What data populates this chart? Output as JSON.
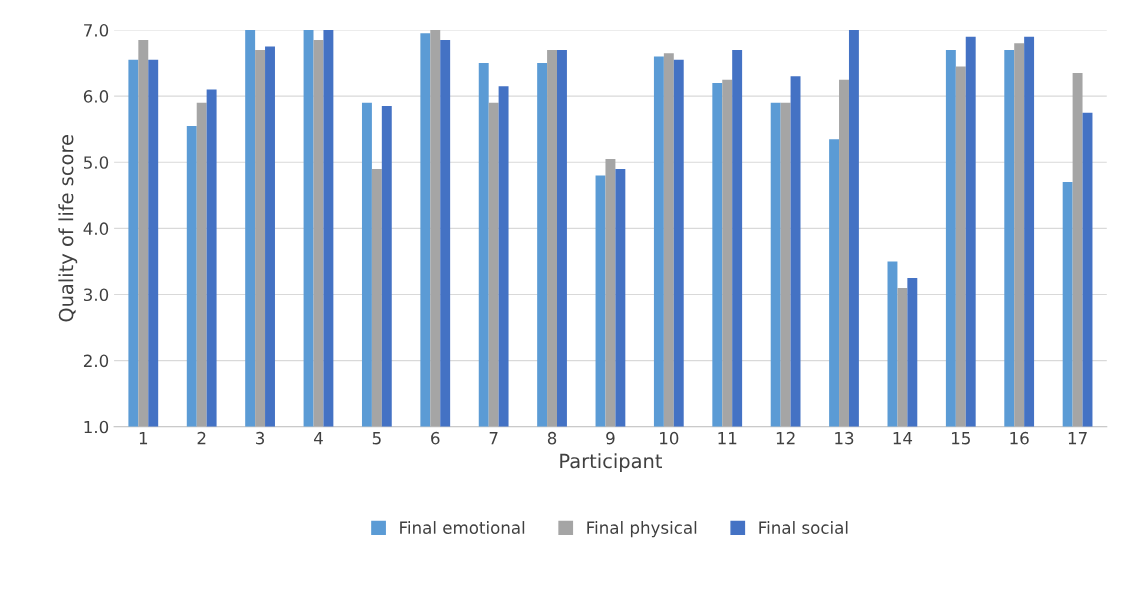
{
  "chart_data": {
    "type": "bar",
    "xlabel": "Participant",
    "ylabel": "Quality of life score",
    "categories": [
      "1",
      "2",
      "3",
      "4",
      "5",
      "6",
      "7",
      "8",
      "9",
      "10",
      "11",
      "12",
      "13",
      "14",
      "15",
      "16",
      "17"
    ],
    "series": [
      {
        "name": "Final emotional",
        "color": "#5b9bd5",
        "values": [
          6.55,
          5.55,
          7.0,
          7.0,
          5.9,
          6.95,
          6.5,
          6.5,
          4.8,
          6.6,
          6.2,
          5.9,
          5.35,
          3.5,
          6.7,
          6.7,
          4.7
        ]
      },
      {
        "name": "Final physical",
        "color": "#a5a5a5",
        "values": [
          6.85,
          5.9,
          6.7,
          6.85,
          4.9,
          7.0,
          5.9,
          6.7,
          5.05,
          6.65,
          6.25,
          5.9,
          6.25,
          3.1,
          6.45,
          6.8,
          6.35
        ]
      },
      {
        "name": "Final social",
        "color": "#4472c4",
        "values": [
          6.55,
          6.1,
          6.75,
          7.0,
          5.85,
          6.85,
          6.15,
          6.7,
          4.9,
          6.55,
          6.7,
          6.3,
          7.0,
          3.25,
          6.9,
          6.9,
          5.75
        ]
      }
    ],
    "ylim": [
      1,
      7
    ],
    "yticks": [
      {
        "value": 1,
        "label": "1.0"
      },
      {
        "value": 2,
        "label": "2.0"
      },
      {
        "value": 3,
        "label": "3.0"
      },
      {
        "value": 4,
        "label": "4.0"
      },
      {
        "value": 5,
        "label": "5.0"
      },
      {
        "value": 6,
        "label": "6.0"
      },
      {
        "value": 7,
        "label": "7.0"
      }
    ],
    "grid": "y",
    "legend": "bottom"
  }
}
